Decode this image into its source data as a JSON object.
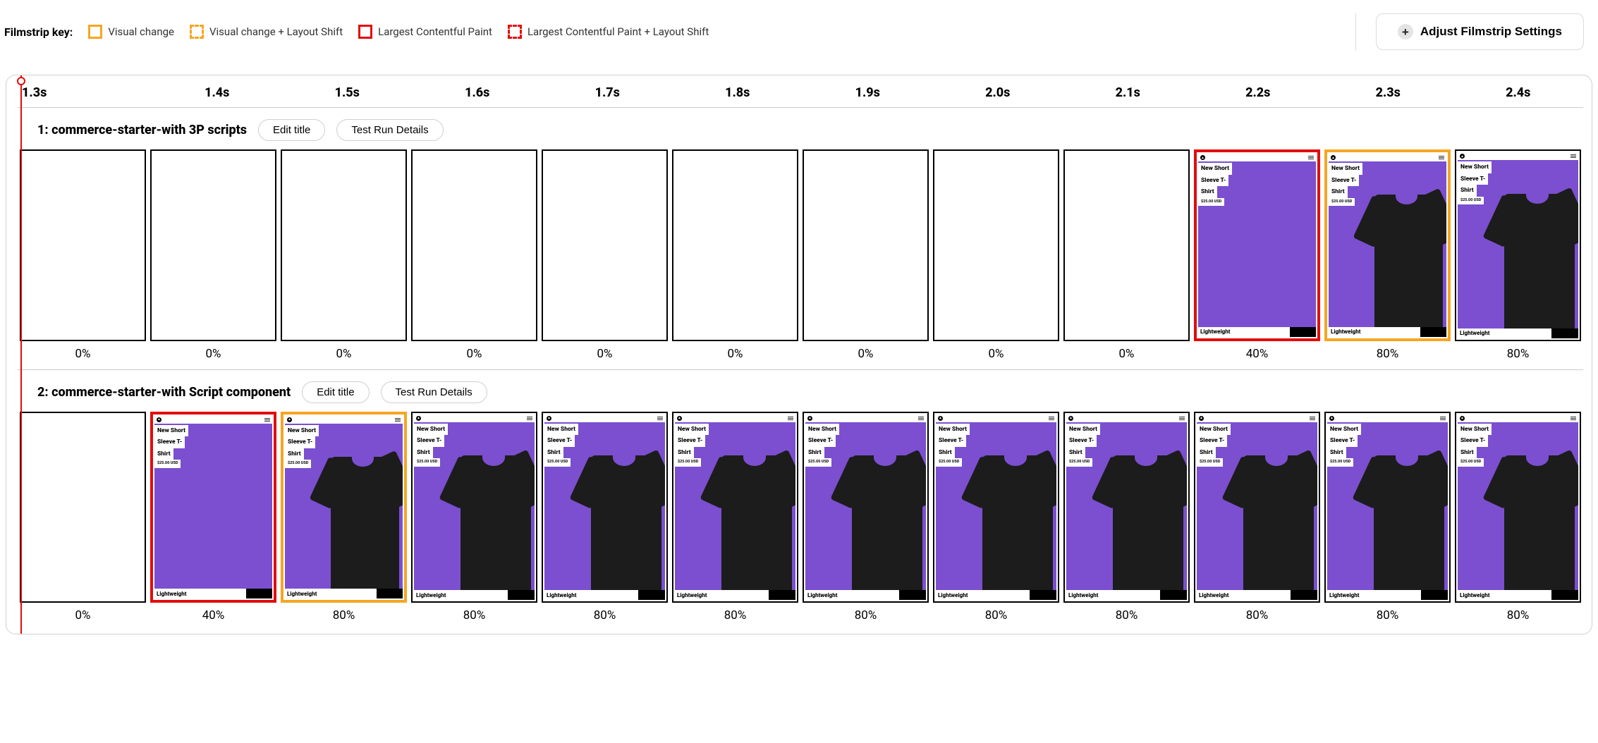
{
  "colors": {
    "orange": "#f5a623",
    "red": "#e20c0c",
    "black": "#000000",
    "purple": "#7b4fcf"
  },
  "key_label": "Filmstrip key:",
  "legend": [
    {
      "swatch": "orange-solid",
      "label": "Visual change"
    },
    {
      "swatch": "orange-dashed",
      "label": "Visual change + Layout Shift"
    },
    {
      "swatch": "red-solid",
      "label": "Largest Contentful Paint"
    },
    {
      "swatch": "red-dashed",
      "label": "Largest Contentful Paint + Layout Shift"
    }
  ],
  "adjust_button": "Adjust Filmstrip Settings",
  "timeline": [
    "1.3s",
    "1.4s",
    "1.5s",
    "1.6s",
    "1.7s",
    "1.8s",
    "1.9s",
    "2.0s",
    "2.1s",
    "2.2s",
    "2.3s",
    "2.4s"
  ],
  "buttons": {
    "edit_title": "Edit title",
    "test_run_details": "Test Run Details"
  },
  "product": {
    "line1": "New Short",
    "line2": "Sleeve T-",
    "line3": "Shirt",
    "price": "$25.00 USD",
    "badge": "Lightweight"
  },
  "tests": [
    {
      "title": "1: commerce-starter-with 3P scripts",
      "frames": [
        {
          "border": "black",
          "content": "blank",
          "pct": "0%"
        },
        {
          "border": "black",
          "content": "blank",
          "pct": "0%"
        },
        {
          "border": "black",
          "content": "blank",
          "pct": "0%"
        },
        {
          "border": "black",
          "content": "blank",
          "pct": "0%"
        },
        {
          "border": "black",
          "content": "blank",
          "pct": "0%"
        },
        {
          "border": "black",
          "content": "blank",
          "pct": "0%"
        },
        {
          "border": "black",
          "content": "blank",
          "pct": "0%"
        },
        {
          "border": "black",
          "content": "blank",
          "pct": "0%"
        },
        {
          "border": "black",
          "content": "blank",
          "pct": "0%"
        },
        {
          "border": "red",
          "content": "product-noshirt",
          "pct": "40%"
        },
        {
          "border": "orange",
          "content": "product",
          "pct": "80%"
        },
        {
          "border": "black",
          "content": "product",
          "pct": "80%"
        }
      ]
    },
    {
      "title": "2: commerce-starter-with Script component",
      "frames": [
        {
          "border": "black",
          "content": "blank",
          "pct": "0%"
        },
        {
          "border": "red",
          "content": "product-noshirt",
          "pct": "40%"
        },
        {
          "border": "orange",
          "content": "product",
          "pct": "80%"
        },
        {
          "border": "black",
          "content": "product",
          "pct": "80%"
        },
        {
          "border": "black",
          "content": "product",
          "pct": "80%"
        },
        {
          "border": "black",
          "content": "product",
          "pct": "80%"
        },
        {
          "border": "black",
          "content": "product",
          "pct": "80%"
        },
        {
          "border": "black",
          "content": "product",
          "pct": "80%"
        },
        {
          "border": "black",
          "content": "product",
          "pct": "80%"
        },
        {
          "border": "black",
          "content": "product",
          "pct": "80%"
        },
        {
          "border": "black",
          "content": "product",
          "pct": "80%"
        },
        {
          "border": "black",
          "content": "product",
          "pct": "80%"
        }
      ]
    }
  ]
}
